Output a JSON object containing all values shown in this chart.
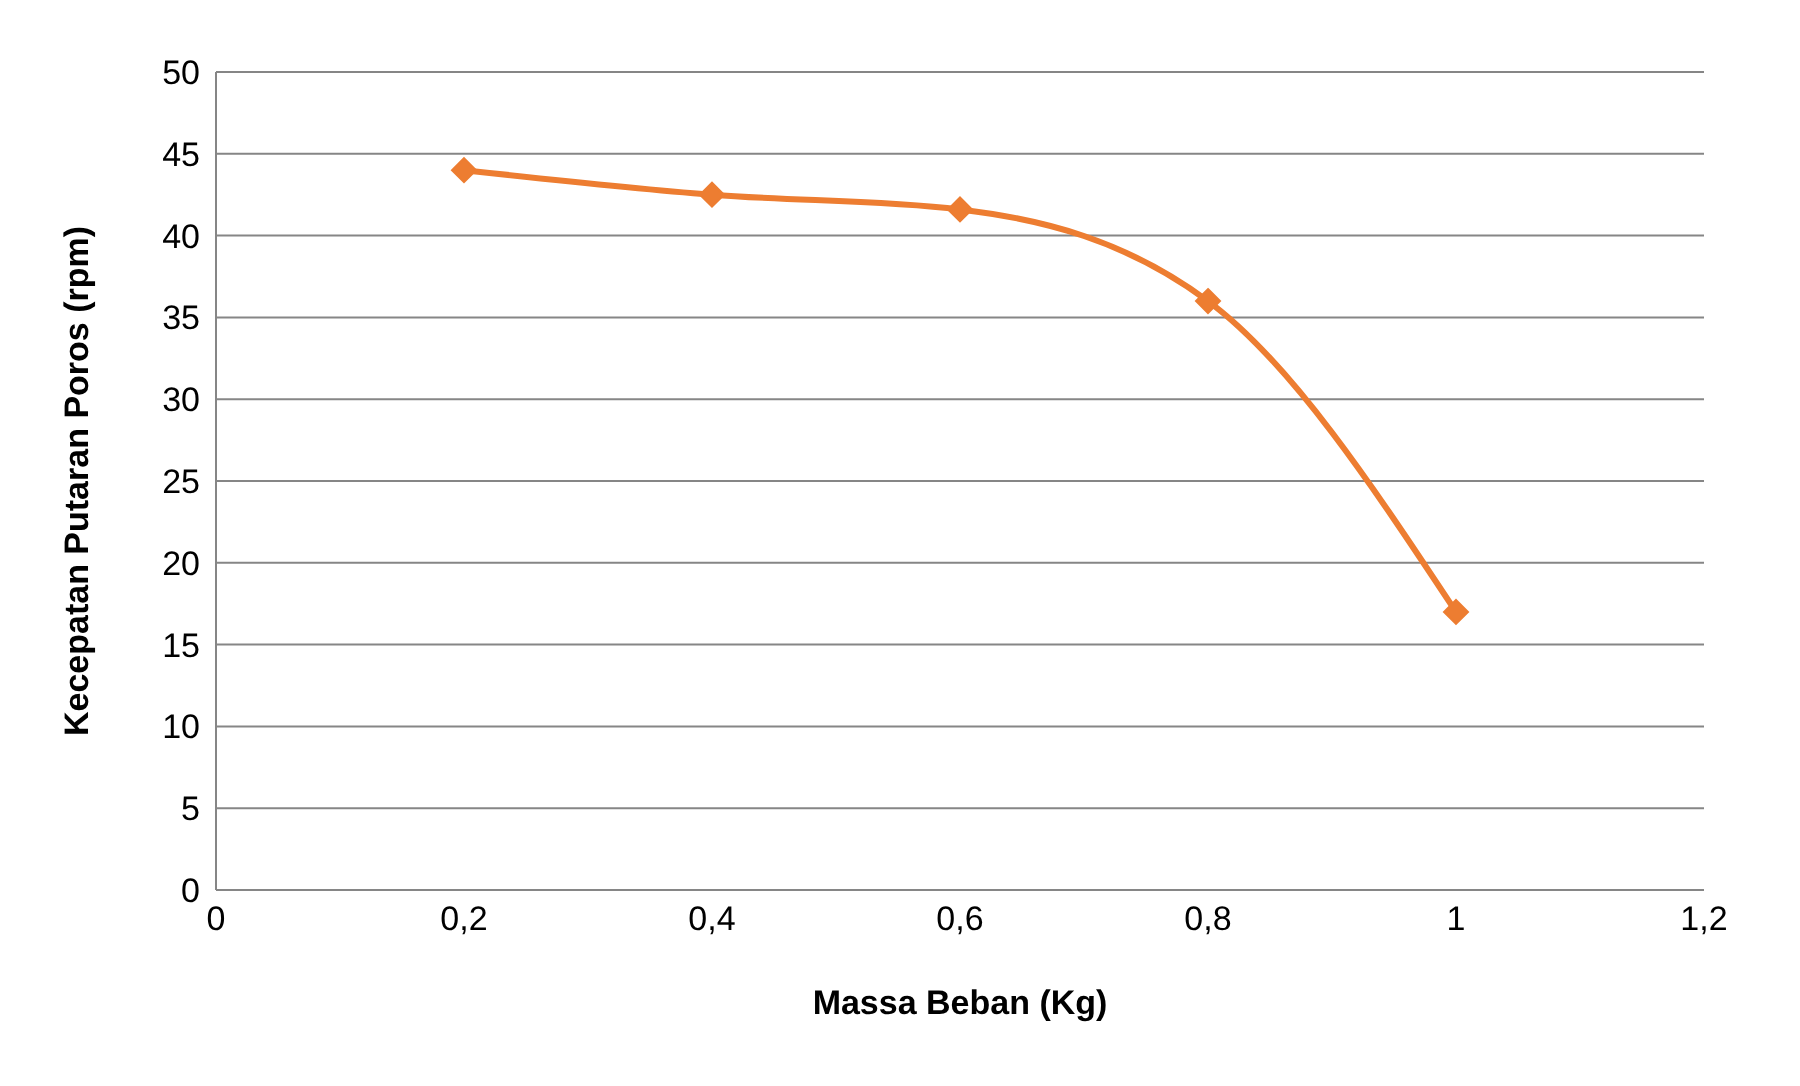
{
  "chart_data": {
    "type": "line",
    "xlabel": "Massa Beban  (Kg)",
    "ylabel": "Kecepatan Putaran Poros  (rpm)",
    "x": [
      0.2,
      0.4,
      0.6,
      0.8,
      1
    ],
    "series": [
      {
        "color": "#ed7d31",
        "values": [
          44,
          42.5,
          41.6,
          36,
          17
        ]
      }
    ],
    "xlim": [
      0,
      1.2
    ],
    "xticks": [
      0,
      {
        "value": 0.2,
        "label": "0,2"
      },
      {
        "value": 0.4,
        "label": "0,4"
      },
      {
        "value": 0.6,
        "label": "0,6"
      },
      {
        "value": 0.8,
        "label": "0,8"
      },
      1,
      {
        "value": 1.2,
        "label": "1,2"
      }
    ],
    "ylim": [
      0,
      50
    ],
    "yticks": [
      0,
      5,
      10,
      15,
      20,
      25,
      30,
      35,
      40,
      45,
      50
    ],
    "grid": "y",
    "legend": false,
    "marker": "diamond",
    "line_style": "solid"
  }
}
